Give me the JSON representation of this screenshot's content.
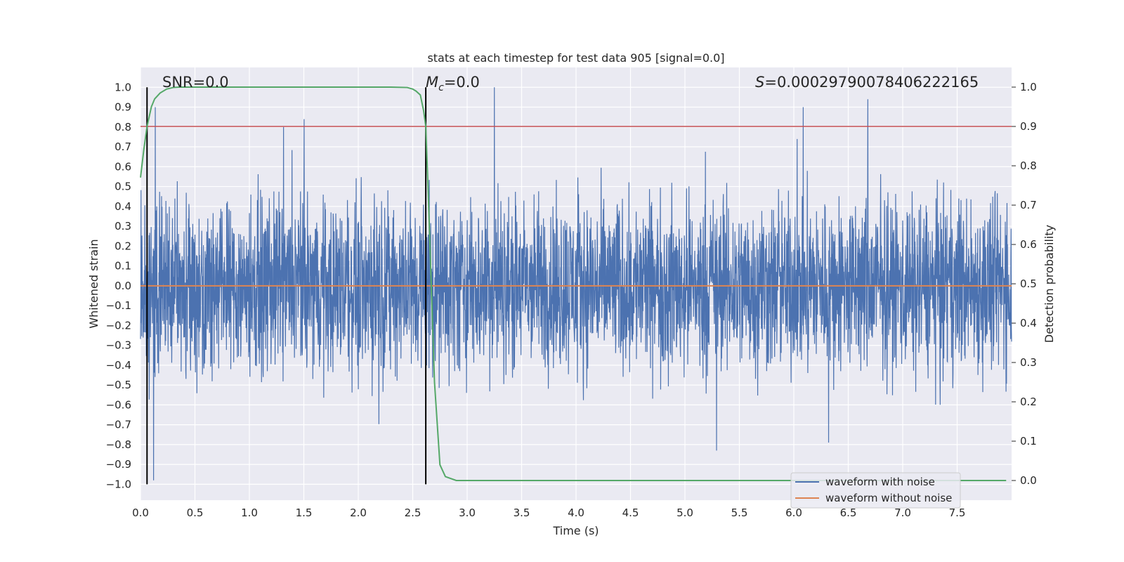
{
  "chart_data": {
    "type": "line",
    "title": "stats at each timestep for test data 905 [signal=0.0]",
    "xlabel": "Time (s)",
    "ylabel_left": "Whitened strain",
    "ylabel_right": "Detection probability",
    "xlim": [
      0.0,
      8.0
    ],
    "ylim_left": [
      -1.08,
      1.1
    ],
    "ylim_right": [
      -0.05,
      1.05
    ],
    "x_ticks": [
      "0.0",
      "0.5",
      "1.0",
      "1.5",
      "2.0",
      "2.5",
      "3.0",
      "3.5",
      "4.0",
      "4.5",
      "5.0",
      "5.5",
      "6.0",
      "6.5",
      "7.0",
      "7.5"
    ],
    "y_ticks_left": [
      "1.0",
      "0.9",
      "0.8",
      "0.7",
      "0.6",
      "0.5",
      "0.4",
      "0.3",
      "0.2",
      "0.1",
      "0.0",
      "−0.1",
      "−0.2",
      "−0.3",
      "−0.4",
      "−0.5",
      "−0.6",
      "−0.7",
      "−0.8",
      "−0.9",
      "−1.0"
    ],
    "y_ticks_right": [
      "1.0",
      "0.9",
      "0.8",
      "0.7",
      "0.6",
      "0.5",
      "0.4",
      "0.3",
      "0.2",
      "0.1",
      "0.0"
    ],
    "grid": true,
    "legend_position": "lower-right",
    "series": [
      {
        "name": "waveform with noise",
        "color": "#4c72b0",
        "axis": "left",
        "description_value": "noise strain, approx. range -1.0 to 1.0",
        "peak_values": [
          [
            3.25,
            1.0
          ],
          [
            6.68,
            0.94
          ],
          [
            0.12,
            -0.98
          ],
          [
            5.29,
            -0.83
          ],
          [
            6.32,
            -0.79
          ]
        ]
      },
      {
        "name": "waveform without noise",
        "color": "#dd8452",
        "axis": "left",
        "constant_value": 0.0
      },
      {
        "name": "detection probability",
        "color": "#55a868",
        "axis": "right",
        "x": [
          0.0,
          0.03,
          0.06,
          0.1,
          0.13,
          0.18,
          0.24,
          0.3,
          0.36,
          0.45,
          0.6,
          1.0,
          1.5,
          2.0,
          2.3,
          2.45,
          2.5,
          2.53,
          2.57,
          2.6,
          2.62,
          2.64,
          2.67,
          2.7,
          2.75,
          2.8,
          2.9,
          3.5,
          5.0,
          7.0,
          7.95
        ],
        "y": [
          0.77,
          0.84,
          0.9,
          0.95,
          0.97,
          0.985,
          0.995,
          0.999,
          1.0,
          1.0,
          1.0,
          1.0,
          1.0,
          1.0,
          1.0,
          0.999,
          0.995,
          0.99,
          0.98,
          0.94,
          0.9,
          0.75,
          0.5,
          0.25,
          0.04,
          0.01,
          0.0,
          0.0,
          0.0,
          0.0,
          0.0
        ]
      }
    ],
    "threshold": {
      "value": 0.9,
      "axis": "right",
      "color": "#c44e52"
    },
    "vlines": [
      {
        "x": 0.06,
        "color": "#000000"
      },
      {
        "x": 2.62,
        "color": "#000000"
      }
    ],
    "annotations": {
      "snr": "SNR=0.0",
      "mc_symbol": "M",
      "mc_sub": "c",
      "mc_value": "=0.0",
      "s_symbol": "S",
      "s_value": "=0.00029790078406222165"
    },
    "legend": [
      "waveform with noise",
      "waveform without noise"
    ]
  }
}
